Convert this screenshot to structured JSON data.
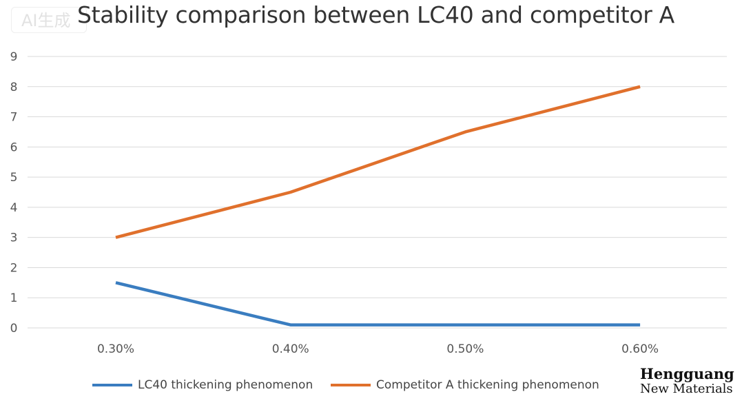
{
  "badge": "AI生成",
  "chart_data": {
    "type": "line",
    "title": "Stability comparison between LC40 and competitor A",
    "categories": [
      "0.30%",
      "0.40%",
      "0.50%",
      "0.60%"
    ],
    "series": [
      {
        "name": "LC40 thickening phenomenon",
        "values": [
          1.5,
          0.1,
          0.1,
          0.1
        ],
        "color": "#3a7dc0"
      },
      {
        "name": "Competitor A thickening phenomenon",
        "values": [
          3,
          4.5,
          6.5,
          8
        ],
        "color": "#e0702c"
      }
    ],
    "yticks": [
      "0",
      "1",
      "2",
      "3",
      "4",
      "5",
      "6",
      "7",
      "8",
      "9"
    ],
    "ylim": [
      0,
      9
    ],
    "grid": true,
    "legend": "bottom"
  },
  "logo": {
    "line1": "Hengguang",
    "line2": "New Materials"
  }
}
